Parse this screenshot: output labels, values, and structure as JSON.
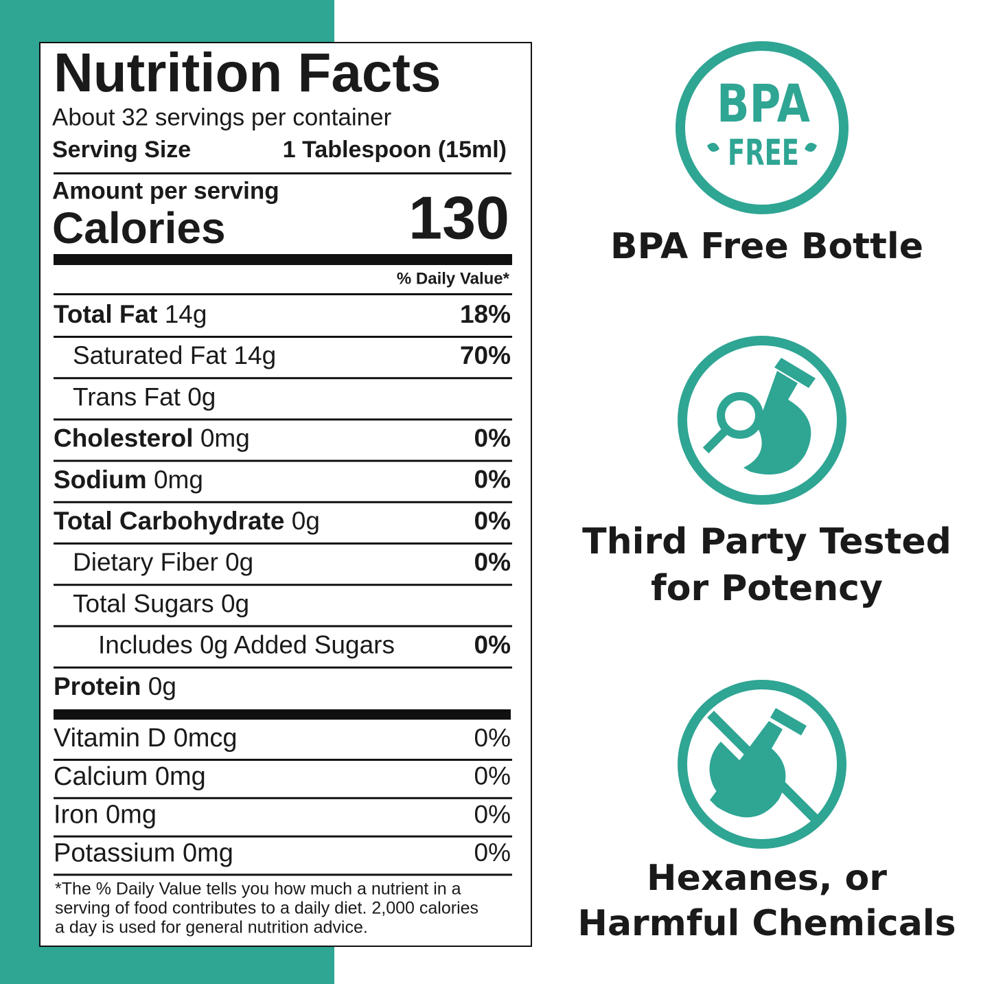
{
  "label": {
    "title": "Nutrition Facts",
    "servings": "About 32 servings per container",
    "serving_size_label": "Serving Size",
    "serving_size": "1 Tablespoon (15ml)",
    "amount_per_serving": "Amount per serving",
    "calories_label": "Calories",
    "calories": "130",
    "dv_header": "% Daily Value*",
    "nutrients": [
      {
        "name": "Total Fat",
        "amount": "14g",
        "dv": "18%",
        "bold": true,
        "level": 0
      },
      {
        "name": "Saturated Fat",
        "amount": "14g",
        "dv": "70%",
        "bold": false,
        "level": 1
      },
      {
        "name": "Trans Fat",
        "amount": "0g",
        "bold": false,
        "level": 1
      },
      {
        "name": "Cholesterol",
        "amount": "0mg",
        "dv": "0%",
        "bold": true,
        "level": 0
      },
      {
        "name": "Sodium",
        "amount": "0mg",
        "dv": "0%",
        "bold": true,
        "level": 0
      },
      {
        "name": "Total Carbohydrate",
        "amount": "0g",
        "dv": "0%",
        "bold": true,
        "level": 0
      },
      {
        "name": "Dietary Fiber",
        "amount": "0g",
        "dv": "0%",
        "bold": false,
        "level": 1
      },
      {
        "name": "Total Sugars",
        "amount": "0g",
        "bold": false,
        "level": 1
      },
      {
        "name": "Includes 0g Added Sugars",
        "dv": "0%",
        "bold": false,
        "level": 2
      },
      {
        "name": "Protein",
        "amount": "0g",
        "bold": true,
        "level": 0
      }
    ],
    "vitamins": [
      {
        "name": "Vitamin D",
        "amount": "0mcg",
        "dv": "0%"
      },
      {
        "name": "Calcium",
        "amount": "0mg",
        "dv": "0%"
      },
      {
        "name": "Iron",
        "amount": "0mg",
        "dv": "0%"
      },
      {
        "name": "Potassium",
        "amount": "0mg",
        "dv": "0%"
      }
    ],
    "footnote": [
      "*The % Daily Value tells you how much a nutrient in a",
      "serving of food contributes to a daily diet. 2,000 calories",
      "a day is used for general nutrition advice."
    ]
  },
  "badges": [
    {
      "icon_text": [
        "BPA",
        "FREE"
      ],
      "caption": [
        "BPA Free Bottle"
      ]
    },
    {
      "caption": [
        "Third Party Tested",
        "for Potency"
      ]
    },
    {
      "caption": [
        "Hexanes, or",
        "Harmful Chemicals"
      ]
    }
  ]
}
